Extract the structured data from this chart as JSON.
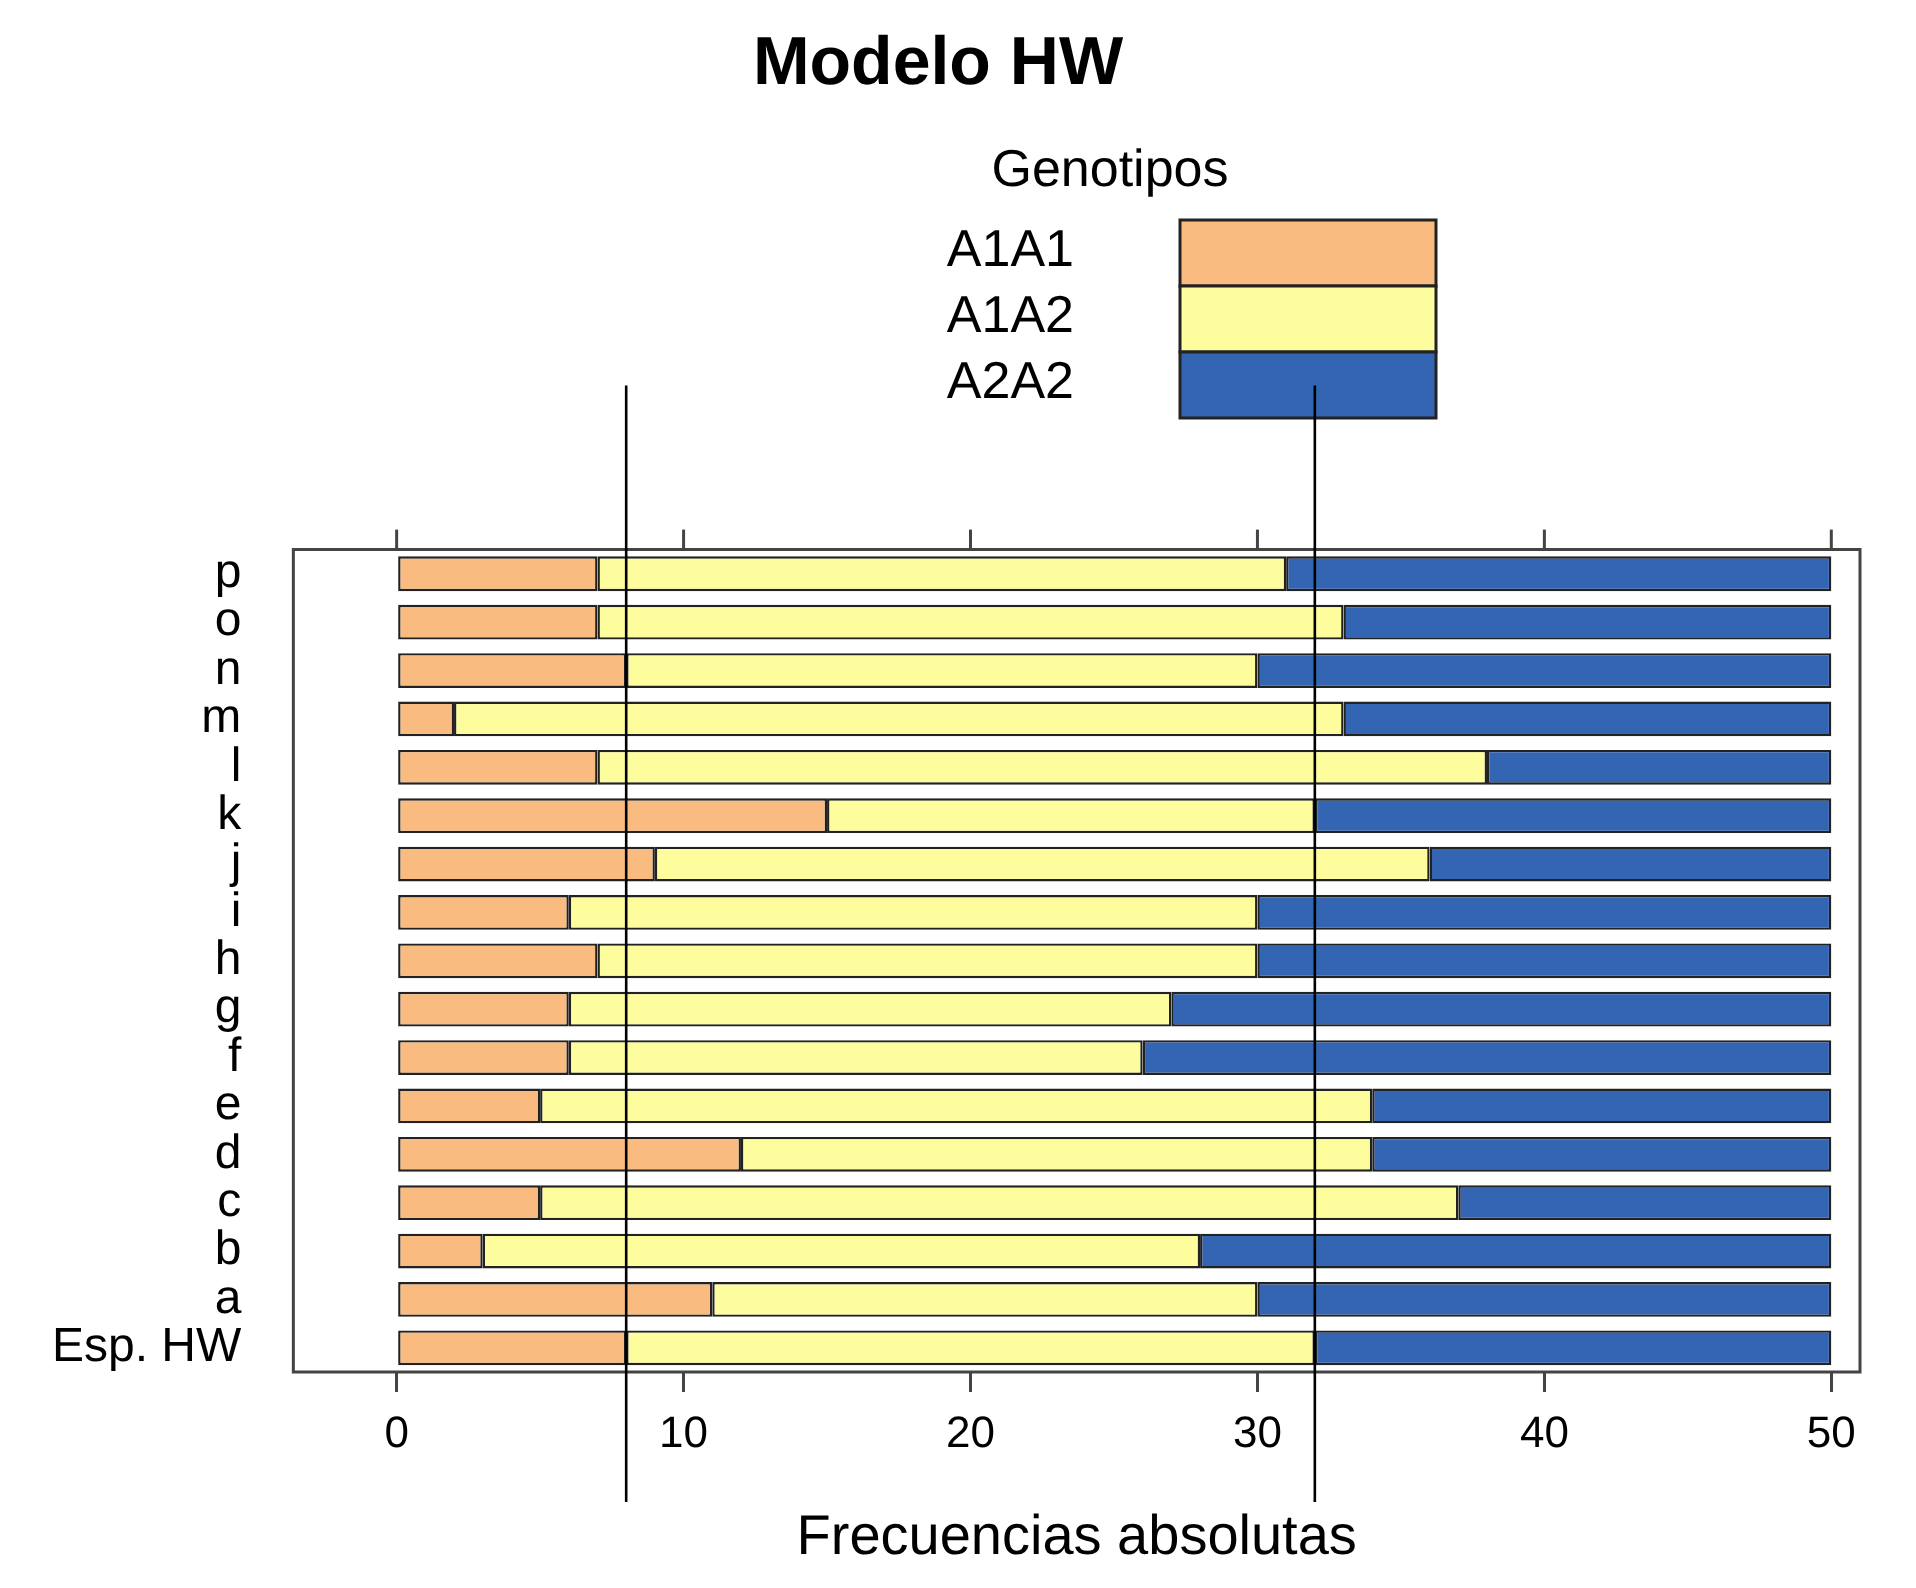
{
  "chart_data": {
    "type": "bar",
    "orientation": "horizontal",
    "stacked": true,
    "title": "Modelo HW",
    "xlabel": "Frecuencias absolutas",
    "legend_title": "Genotipos",
    "legend": "top",
    "categories": [
      "p",
      "o",
      "n",
      "m",
      "l",
      "k",
      "j",
      "i",
      "h",
      "g",
      "f",
      "e",
      "d",
      "c",
      "b",
      "a",
      "Esp. HW"
    ],
    "series": [
      {
        "name": "A1A1",
        "color": "#f9bb80",
        "values": [
          7,
          7,
          8,
          2,
          7,
          15,
          9,
          6,
          7,
          6,
          6,
          5,
          12,
          5,
          3,
          11,
          8
        ]
      },
      {
        "name": "A1A2",
        "color": "#fdfd9e",
        "values": [
          24,
          26,
          22,
          31,
          31,
          17,
          27,
          24,
          23,
          21,
          20,
          29,
          22,
          32,
          25,
          19,
          24
        ]
      },
      {
        "name": "A2A2",
        "color": "#3465b3",
        "values": [
          19,
          17,
          20,
          17,
          12,
          18,
          14,
          20,
          20,
          23,
          24,
          16,
          16,
          13,
          22,
          20,
          18
        ]
      }
    ],
    "xlim": [
      -3.6,
      51
    ],
    "xticks": [
      0,
      10,
      20,
      30,
      40,
      50
    ],
    "grid": false,
    "ref_lines": [
      {
        "axis": "x",
        "value": 8,
        "color": "#000000"
      },
      {
        "axis": "x",
        "value": 32,
        "color": "#000000"
      }
    ]
  }
}
